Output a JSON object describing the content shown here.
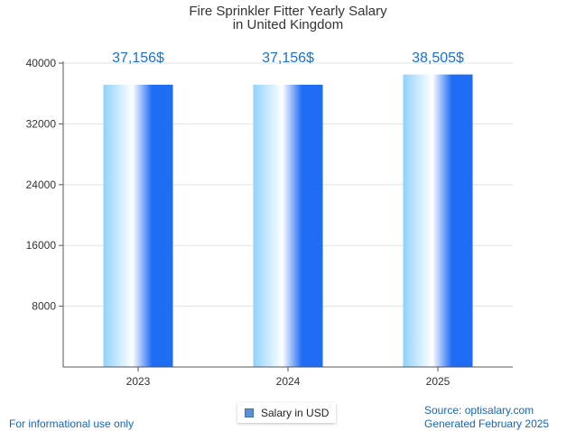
{
  "chart_data": {
    "type": "bar",
    "title": [
      "Fire Sprinkler Fitter Yearly Salary",
      "in United Kingdom"
    ],
    "categories": [
      "2023",
      "2024",
      "2025"
    ],
    "series": [
      {
        "name": "Salary in USD",
        "values": [
          37156,
          37156,
          38505
        ]
      }
    ],
    "data_labels": [
      "37,156$",
      "37,156$",
      "38,505$"
    ],
    "yticks": [
      8000,
      16000,
      24000,
      32000,
      40000
    ],
    "ylim": [
      0,
      40000
    ],
    "xlabel": "",
    "ylabel": "",
    "grid": true,
    "legend_position": "bottom-center"
  },
  "colors": {
    "bar_light": "#8fd3fb",
    "bar_mid": "#ffffff",
    "bar_dark": "#1f6cf5",
    "label": "#1a6fe0",
    "footer": "#1565c0"
  },
  "footer": {
    "disclaimer": "For informational use only",
    "source": "Source: optisalary.com",
    "generated": "Generated February 2025"
  }
}
